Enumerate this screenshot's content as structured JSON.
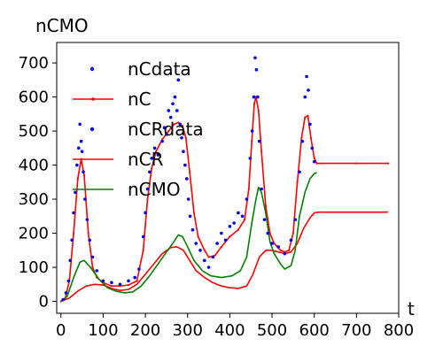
{
  "chart_data": {
    "type": "line",
    "title": "",
    "ylabel": "nCMO",
    "xlabel": "t",
    "xlim": [
      -10,
      800
    ],
    "ylim": [
      -35,
      760
    ],
    "xticks": [
      0,
      100,
      200,
      300,
      400,
      500,
      600,
      700,
      800
    ],
    "yticks": [
      0,
      100,
      200,
      300,
      400,
      500,
      600,
      700
    ],
    "grid": false,
    "legend_position": "top-left",
    "legend": [
      {
        "name": "nCdata",
        "color": "#0000ff",
        "style": "dots"
      },
      {
        "name": "nC",
        "color": "#ff0000",
        "style": "line-marker"
      },
      {
        "name": "nCRdata",
        "color": "#0000ff",
        "style": "dots"
      },
      {
        "name": "nCR",
        "color": "#ff0000",
        "style": "line"
      },
      {
        "name": "nCMO",
        "color": "#008000",
        "style": "line"
      }
    ],
    "series": [
      {
        "name": "nC",
        "color": "#ff0000",
        "points": [
          [
            0,
            0
          ],
          [
            10,
            8
          ],
          [
            20,
            60
          ],
          [
            30,
            200
          ],
          [
            40,
            360
          ],
          [
            48,
            418
          ],
          [
            55,
            370
          ],
          [
            65,
            200
          ],
          [
            75,
            100
          ],
          [
            85,
            70
          ],
          [
            100,
            55
          ],
          [
            120,
            45
          ],
          [
            140,
            45
          ],
          [
            160,
            48
          ],
          [
            180,
            60
          ],
          [
            195,
            150
          ],
          [
            205,
            300
          ],
          [
            215,
            390
          ],
          [
            225,
            440
          ],
          [
            240,
            475
          ],
          [
            255,
            500
          ],
          [
            268,
            520
          ],
          [
            278,
            525
          ],
          [
            288,
            515
          ],
          [
            296,
            480
          ],
          [
            305,
            380
          ],
          [
            315,
            260
          ],
          [
            325,
            190
          ],
          [
            340,
            150
          ],
          [
            350,
            130
          ],
          [
            365,
            135
          ],
          [
            380,
            160
          ],
          [
            400,
            190
          ],
          [
            420,
            210
          ],
          [
            435,
            240
          ],
          [
            445,
            330
          ],
          [
            452,
            470
          ],
          [
            458,
            580
          ],
          [
            462,
            600
          ],
          [
            468,
            560
          ],
          [
            475,
            440
          ],
          [
            485,
            280
          ],
          [
            495,
            200
          ],
          [
            505,
            170
          ],
          [
            520,
            150
          ],
          [
            530,
            145
          ],
          [
            540,
            150
          ],
          [
            550,
            200
          ],
          [
            560,
            350
          ],
          [
            570,
            480
          ],
          [
            578,
            540
          ],
          [
            585,
            545
          ],
          [
            592,
            480
          ],
          [
            600,
            420
          ],
          [
            606,
            405
          ],
          [
            700,
            405
          ],
          [
            775,
            405
          ]
        ]
      },
      {
        "name": "nCR",
        "color": "#ff0000",
        "points": [
          [
            0,
            0
          ],
          [
            20,
            10
          ],
          [
            40,
            30
          ],
          [
            60,
            45
          ],
          [
            80,
            50
          ],
          [
            100,
            48
          ],
          [
            120,
            38
          ],
          [
            140,
            32
          ],
          [
            160,
            35
          ],
          [
            180,
            50
          ],
          [
            200,
            80
          ],
          [
            220,
            110
          ],
          [
            240,
            140
          ],
          [
            260,
            158
          ],
          [
            275,
            160
          ],
          [
            290,
            150
          ],
          [
            305,
            120
          ],
          [
            320,
            90
          ],
          [
            340,
            70
          ],
          [
            360,
            55
          ],
          [
            380,
            45
          ],
          [
            400,
            40
          ],
          [
            420,
            38
          ],
          [
            440,
            45
          ],
          [
            455,
            80
          ],
          [
            470,
            130
          ],
          [
            485,
            150
          ],
          [
            500,
            150
          ],
          [
            515,
            145
          ],
          [
            530,
            140
          ],
          [
            545,
            145
          ],
          [
            560,
            170
          ],
          [
            575,
            215
          ],
          [
            590,
            245
          ],
          [
            600,
            260
          ],
          [
            610,
            262
          ],
          [
            700,
            262
          ],
          [
            775,
            262
          ]
        ]
      },
      {
        "name": "nCMO",
        "color": "#008000",
        "points": [
          [
            0,
            0
          ],
          [
            15,
            15
          ],
          [
            30,
            70
          ],
          [
            45,
            115
          ],
          [
            55,
            120
          ],
          [
            70,
            100
          ],
          [
            90,
            65
          ],
          [
            110,
            40
          ],
          [
            130,
            30
          ],
          [
            150,
            25
          ],
          [
            170,
            28
          ],
          [
            190,
            45
          ],
          [
            210,
            75
          ],
          [
            230,
            110
          ],
          [
            250,
            145
          ],
          [
            265,
            170
          ],
          [
            278,
            195
          ],
          [
            288,
            190
          ],
          [
            300,
            160
          ],
          [
            315,
            120
          ],
          [
            335,
            90
          ],
          [
            355,
            75
          ],
          [
            380,
            70
          ],
          [
            405,
            75
          ],
          [
            425,
            90
          ],
          [
            440,
            130
          ],
          [
            452,
            230
          ],
          [
            462,
            300
          ],
          [
            468,
            335
          ],
          [
            475,
            320
          ],
          [
            485,
            260
          ],
          [
            495,
            175
          ],
          [
            505,
            140
          ],
          [
            520,
            110
          ],
          [
            530,
            95
          ],
          [
            545,
            105
          ],
          [
            555,
            150
          ],
          [
            565,
            250
          ],
          [
            578,
            320
          ],
          [
            590,
            360
          ],
          [
            600,
            375
          ],
          [
            606,
            378
          ]
        ]
      },
      {
        "name": "nCdata",
        "color": "#0000ff",
        "style": "scatter",
        "points": [
          [
            5,
            5
          ],
          [
            12,
            25
          ],
          [
            18,
            60
          ],
          [
            22,
            120
          ],
          [
            26,
            180
          ],
          [
            30,
            260
          ],
          [
            34,
            320
          ],
          [
            38,
            400
          ],
          [
            42,
            450
          ],
          [
            45,
            520
          ],
          [
            48,
            470
          ],
          [
            50,
            440
          ],
          [
            53,
            380
          ],
          [
            57,
            300
          ],
          [
            62,
            240
          ],
          [
            68,
            180
          ],
          [
            75,
            130
          ],
          [
            85,
            90
          ],
          [
            100,
            60
          ],
          [
            120,
            55
          ],
          [
            140,
            50
          ],
          [
            160,
            60
          ],
          [
            175,
            70
          ],
          [
            185,
            95
          ],
          [
            195,
            190
          ],
          [
            200,
            260
          ],
          [
            205,
            330
          ],
          [
            210,
            380
          ],
          [
            215,
            420
          ],
          [
            222,
            450
          ],
          [
            230,
            430
          ],
          [
            240,
            470
          ],
          [
            245,
            510
          ],
          [
            250,
            490
          ],
          [
            255,
            560
          ],
          [
            260,
            540
          ],
          [
            265,
            580
          ],
          [
            270,
            600
          ],
          [
            275,
            560
          ],
          [
            278,
            650
          ],
          [
            282,
            520
          ],
          [
            286,
            480
          ],
          [
            290,
            440
          ],
          [
            294,
            400
          ],
          [
            298,
            360
          ],
          [
            302,
            300
          ],
          [
            306,
            250
          ],
          [
            312,
            210
          ],
          [
            320,
            170
          ],
          [
            330,
            150
          ],
          [
            340,
            120
          ],
          [
            350,
            100
          ],
          [
            360,
            130
          ],
          [
            370,
            170
          ],
          [
            380,
            200
          ],
          [
            390,
            180
          ],
          [
            400,
            220
          ],
          [
            410,
            230
          ],
          [
            420,
            260
          ],
          [
            430,
            250
          ],
          [
            440,
            300
          ],
          [
            448,
            420
          ],
          [
            453,
            500
          ],
          [
            457,
            600
          ],
          [
            460,
            715
          ],
          [
            463,
            680
          ],
          [
            466,
            600
          ],
          [
            470,
            470
          ],
          [
            475,
            330
          ],
          [
            482,
            240
          ],
          [
            490,
            200
          ],
          [
            500,
            170
          ],
          [
            515,
            160
          ],
          [
            530,
            140
          ],
          [
            545,
            180
          ],
          [
            555,
            240
          ],
          [
            565,
            380
          ],
          [
            572,
            470
          ],
          [
            578,
            600
          ],
          [
            582,
            660
          ],
          [
            586,
            620
          ],
          [
            590,
            520
          ],
          [
            595,
            450
          ],
          [
            600,
            410
          ]
        ]
      }
    ]
  }
}
